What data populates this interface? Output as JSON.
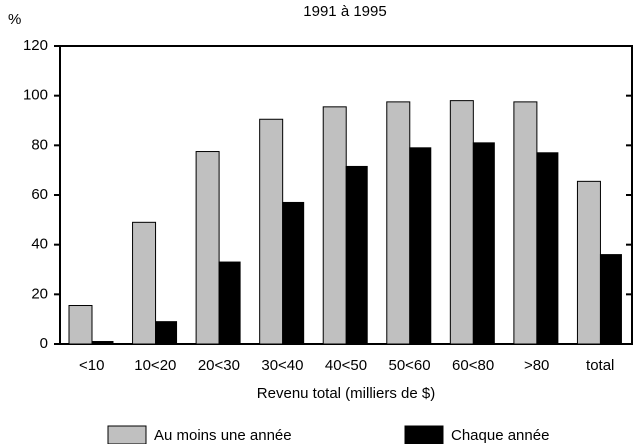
{
  "chart_data": {
    "type": "bar",
    "title": "1991 à 1995",
    "y_label": "%",
    "x_label": "Revenu total (milliers de $)",
    "categories": [
      "<10",
      "10<20",
      "20<30",
      "30<40",
      "40<50",
      "50<60",
      "60<80",
      ">80",
      "total"
    ],
    "series": [
      {
        "name": "Au moins une année",
        "color": "#c0c0c0",
        "values": [
          15.5,
          49,
          77.5,
          90.5,
          95.5,
          97.5,
          98,
          97.5,
          65.5
        ]
      },
      {
        "name": "Chaque année",
        "color": "#000000",
        "values": [
          1,
          9,
          33,
          57,
          71.5,
          79,
          81,
          77,
          36
        ]
      }
    ],
    "ylim": [
      0,
      120
    ],
    "yticks": [
      0,
      20,
      40,
      60,
      80,
      100,
      120
    ]
  }
}
